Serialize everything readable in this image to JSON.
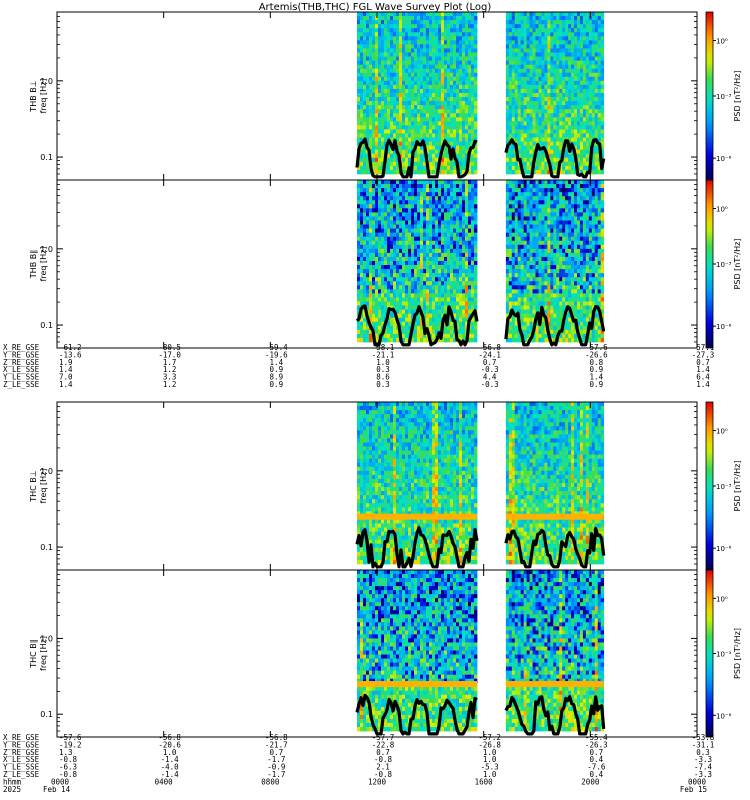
{
  "title": "Artemis(THB,THC) FGL Wave Survey Plot (Log)",
  "chart_data": {
    "type": "heatmap",
    "title": "Artemis(THB,THC) FGL Wave Survey Plot (Log)",
    "x_axis": {
      "unit": "hhmm",
      "start": "0000",
      "end": "2400",
      "tick_labels": [
        "0000",
        "0400",
        "0800",
        "1200",
        "1600",
        "2000",
        "0000"
      ],
      "date_labels": [
        "Feb 14",
        "Feb 15"
      ],
      "year": "2025"
    },
    "y_axis": {
      "scale": "log",
      "ylabel_units": "freq [Hz]",
      "tick_labels": [
        "0.1",
        "1.0"
      ],
      "ylim": [
        0.05,
        8
      ]
    },
    "colorbar": {
      "label": "PSD [nT²/Hz]",
      "scale": "log",
      "tick_labels": [
        "10⁰",
        "10⁻³",
        "10⁻⁶"
      ]
    },
    "data_gaps_hhmm": [
      [
        "0000",
        "1115"
      ],
      [
        "1545",
        "1650"
      ],
      [
        "2030",
        "2400"
      ]
    ],
    "panels": [
      {
        "name": "THB B⊥",
        "ylabel_probe": "THB B⊥",
        "ylabel_units": "freq [Hz]",
        "band_hz": null
      },
      {
        "name": "THB B∥",
        "ylabel_probe": "THB B∥",
        "ylabel_units": "freq [Hz]",
        "band_hz": null
      },
      {
        "name": "THC B⊥",
        "ylabel_probe": "THC B⊥",
        "ylabel_units": "freq [Hz]",
        "band_hz": 0.25
      },
      {
        "name": "THC B∥",
        "ylabel_probe": "THC B∥",
        "ylabel_units": "freq [Hz]",
        "band_hz": 0.25
      }
    ],
    "ephemeris": [
      {
        "probe": "THB",
        "rows": [
          {
            "label": "X_RE_GSE",
            "values": [
              "-61.2",
              "-80.5",
              "-59.4",
              "-58.1",
              "-56.8",
              "-57.6",
              "-57.1"
            ]
          },
          {
            "label": "Y_RE_GSE",
            "values": [
              "-13.6",
              "-17.0",
              "-19.6",
              "-21.1",
              "-24.1",
              "-26.6",
              "-27.3"
            ]
          },
          {
            "label": "Z_RE_GSE",
            "values": [
              "1.9",
              "1.7",
              "1.4",
              "1.0",
              "0.7",
              "0.8",
              "0.7"
            ]
          },
          {
            "label": "X_LE_SSE",
            "values": [
              "1.4",
              "1.2",
              "0.9",
              "0.3",
              "-0.3",
              "0.9",
              "1.4"
            ]
          },
          {
            "label": "Y_LE_SSE",
            "values": [
              "7.0",
              "3.3",
              "8.9",
              "8.6",
              "4.4",
              "1.4",
              "6.4"
            ]
          },
          {
            "label": "Z_LE_SSE",
            "values": [
              "1.4",
              "1.2",
              "0.9",
              "0.3",
              "-0.3",
              "0.9",
              "1.4"
            ]
          }
        ]
      },
      {
        "probe": "THC",
        "rows": [
          {
            "label": "X_RE_GSE",
            "values": [
              "-57.6",
              "-56.8",
              "-56.8",
              "-57.7",
              "-57.2",
              "-55.4",
              "-53.8"
            ]
          },
          {
            "label": "Y_RE_GSE",
            "values": [
              "-19.2",
              "-20.6",
              "-21.7",
              "-22.8",
              "-26.8",
              "-26.3",
              "-31.1"
            ]
          },
          {
            "label": "Z_RE_GSE",
            "values": [
              "1.3",
              "1.0",
              "0.7",
              "0.7",
              "1.0",
              "0.7",
              "0.3"
            ]
          },
          {
            "label": "X_LE_SSE",
            "values": [
              "-0.8",
              "-1.4",
              "-1.7",
              "-0.8",
              "1.0",
              "0.4",
              "-3.3"
            ]
          },
          {
            "label": "Y_LE_SSE",
            "values": [
              "-6.3",
              "-4.0",
              "-0.9",
              "2.1",
              "-5.3",
              "-7.6",
              "-7.4"
            ]
          },
          {
            "label": "Z_LE_SSE",
            "values": [
              "-0.8",
              "-1.4",
              "-1.7",
              "-0.8",
              "1.0",
              "0.4",
              "-3.3"
            ]
          }
        ]
      }
    ]
  }
}
